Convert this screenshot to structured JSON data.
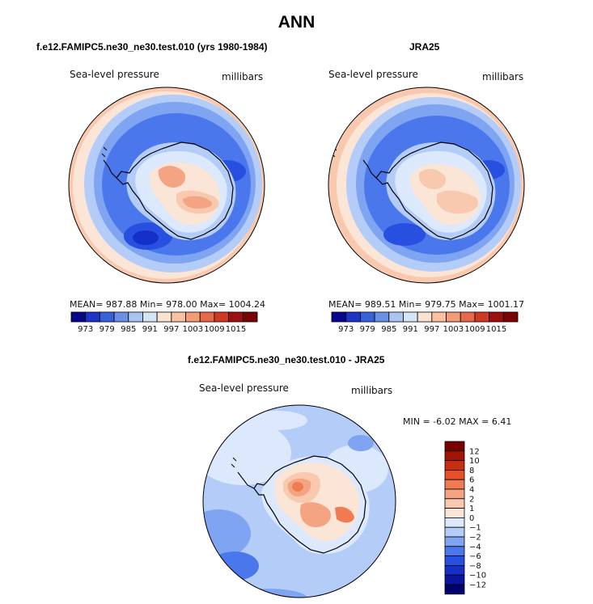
{
  "figure": {
    "title": "ANN"
  },
  "panels": [
    {
      "subtitle": "f.e12.FAMIPC5.ne30_ne30.test.010 (yrs 1980-1984)",
      "field_label": "Sea-level pressure",
      "units_label": "millibars",
      "stats_text": "MEAN= 987.88   Min= 978.00   Max= 1004.24"
    },
    {
      "subtitle": "JRA25",
      "field_label": "Sea-level pressure",
      "units_label": "millibars",
      "stats_text": "MEAN= 989.51   Min= 979.75   Max= 1001.17"
    },
    {
      "subtitle": "f.e12.FAMIPC5.ne30_ne30.test.010 - JRA25",
      "field_label": "Sea-level pressure",
      "units_label": "millibars",
      "stats_text": "MIN =   -6.02  MAX =    6.41"
    }
  ],
  "chart_data": [
    {
      "type": "heatmap",
      "projection": "south-polar-stereographic",
      "title": "f.e12.FAMIPC5.ne30_ne30.test.010 (yrs 1980-1984)",
      "variable": "Sea-level pressure",
      "units": "millibars",
      "mean": 987.88,
      "min": 978.0,
      "max": 1004.24,
      "colorbar": {
        "orientation": "horizontal",
        "levels": [
          973,
          979,
          985,
          991,
          997,
          1003,
          1009,
          1015
        ],
        "colors": [
          "#08088a",
          "#1e34c4",
          "#3a62d8",
          "#6a90e4",
          "#a9c4f0",
          "#d6e4f8",
          "#fbe3d2",
          "#f8c1a2",
          "#f39a77",
          "#e8684a",
          "#cf3a24",
          "#9e1010",
          "#7a0303"
        ]
      }
    },
    {
      "type": "heatmap",
      "projection": "south-polar-stereographic",
      "title": "JRA25",
      "variable": "Sea-level pressure",
      "units": "millibars",
      "mean": 989.51,
      "min": 979.75,
      "max": 1001.17,
      "colorbar": {
        "orientation": "horizontal",
        "levels": [
          973,
          979,
          985,
          991,
          997,
          1003,
          1009,
          1015
        ],
        "colors": [
          "#08088a",
          "#1e34c4",
          "#3a62d8",
          "#6a90e4",
          "#a9c4f0",
          "#d6e4f8",
          "#fbe3d2",
          "#f8c1a2",
          "#f39a77",
          "#e8684a",
          "#cf3a24",
          "#9e1010",
          "#7a0303"
        ]
      }
    },
    {
      "type": "heatmap",
      "projection": "south-polar-stereographic",
      "title": "f.e12.FAMIPC5.ne30_ne30.test.010 - JRA25",
      "variable": "Sea-level pressure",
      "units": "millibars",
      "min": -6.02,
      "max": 6.41,
      "colorbar": {
        "orientation": "vertical",
        "levels": [
          -12,
          -10,
          -8,
          -6,
          -4,
          -2,
          -1,
          0,
          1,
          2,
          4,
          6,
          8,
          10,
          12
        ],
        "tick_labels": [
          "12",
          "10",
          "8",
          "6",
          "4",
          "2",
          "1",
          "0",
          "−1",
          "−2",
          "−4",
          "−6",
          "−8",
          "−10",
          "−12"
        ],
        "colors": [
          "#00006e",
          "#0a149c",
          "#1430c8",
          "#2850e0",
          "#4a78ec",
          "#7fa4f2",
          "#b4ccf8",
          "#dce8fb",
          "#fbe5d6",
          "#f8c9ae",
          "#f4a482",
          "#f07a52",
          "#e5502a",
          "#c82e10",
          "#a01404",
          "#7a0000"
        ]
      }
    }
  ]
}
